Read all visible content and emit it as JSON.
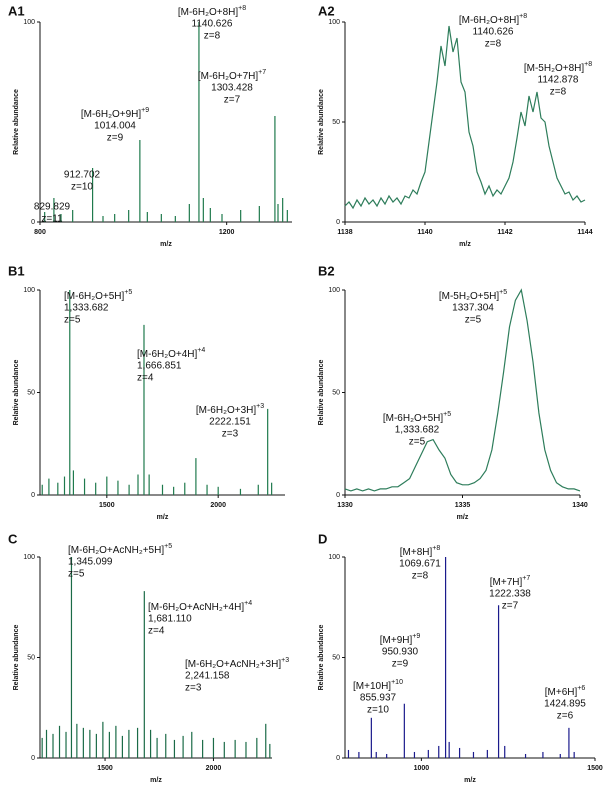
{
  "chart_data": [
    {
      "panel": "A1",
      "type": "stem",
      "xlabel": "m/z",
      "ylabel": "Relative abundance",
      "color": "#1f7a4d",
      "xlim": [
        800,
        1340
      ],
      "ylim": [
        0,
        100
      ],
      "xticks": [
        800,
        1200
      ],
      "yticks": [
        0,
        100
      ],
      "x": [
        810,
        829.8,
        845,
        870,
        912.7,
        935,
        960,
        990,
        1014.0,
        1030,
        1060,
        1090,
        1120,
        1140.6,
        1150,
        1165,
        1190,
        1230,
        1270,
        1303.4,
        1310,
        1320,
        1330
      ],
      "values": [
        5,
        12,
        4,
        6,
        27,
        3,
        4,
        6,
        41,
        5,
        4,
        3,
        9,
        100,
        12,
        7,
        4,
        6,
        8,
        53,
        9,
        12,
        6
      ],
      "annotations": [
        {
          "ion": "[M-6H₂O+8H]",
          "charge": "+8",
          "mz": "1140.626",
          "z": "z=8"
        },
        {
          "ion": "[M-6H₂O+7H]",
          "charge": "+7",
          "mz": "1303.428",
          "z": "z=7"
        },
        {
          "ion": "[M-6H₂O+9H]",
          "charge": "+9",
          "mz": "1014.004",
          "z": "z=9"
        },
        {
          "mz": "912.702",
          "z": "z=10"
        },
        {
          "mz": "829.829",
          "z": "z=11"
        }
      ]
    },
    {
      "panel": "A2",
      "type": "line",
      "xlabel": "m/z",
      "ylabel": "Relative abundance",
      "color": "#2e7d5b",
      "xlim": [
        1138,
        1144
      ],
      "ylim": [
        0,
        100
      ],
      "xticks": [
        1138,
        1140,
        1142,
        1144
      ],
      "yticks": [
        0,
        50,
        100
      ],
      "x": [
        1138.0,
        1138.1,
        1138.2,
        1138.3,
        1138.4,
        1138.5,
        1138.6,
        1138.7,
        1138.8,
        1138.9,
        1139.0,
        1139.1,
        1139.2,
        1139.3,
        1139.4,
        1139.5,
        1139.6,
        1139.7,
        1139.8,
        1139.9,
        1140.0,
        1140.1,
        1140.2,
        1140.3,
        1140.4,
        1140.5,
        1140.6,
        1140.7,
        1140.8,
        1140.9,
        1141.0,
        1141.1,
        1141.2,
        1141.3,
        1141.4,
        1141.5,
        1141.6,
        1141.7,
        1141.8,
        1141.9,
        1142.0,
        1142.1,
        1142.2,
        1142.3,
        1142.4,
        1142.5,
        1142.6,
        1142.7,
        1142.8,
        1142.9,
        1143.0,
        1143.1,
        1143.2,
        1143.3,
        1143.4,
        1143.5,
        1143.6,
        1143.7,
        1143.8,
        1143.9,
        1144.0
      ],
      "values": [
        8,
        10,
        7,
        11,
        8,
        12,
        9,
        11,
        8,
        12,
        9,
        13,
        10,
        12,
        9,
        13,
        12,
        16,
        14,
        20,
        25,
        40,
        55,
        70,
        88,
        78,
        98,
        85,
        92,
        70,
        65,
        45,
        38,
        25,
        20,
        14,
        18,
        13,
        16,
        14,
        18,
        22,
        30,
        42,
        55,
        48,
        63,
        55,
        65,
        52,
        50,
        38,
        30,
        22,
        18,
        14,
        15,
        11,
        13,
        10,
        11
      ],
      "annotations": [
        {
          "ion": "[M-6H₂O+8H]",
          "charge": "+8",
          "mz": "1140.626",
          "z": "z=8"
        },
        {
          "ion": "[M-5H₂O+8H]",
          "charge": "+8",
          "mz": "1142.878",
          "z": "z=8"
        }
      ]
    },
    {
      "panel": "B1",
      "type": "stem",
      "xlabel": "m/z",
      "ylabel": "Relative abundance",
      "color": "#1f7a4d",
      "xlim": [
        1200,
        2300
      ],
      "ylim": [
        0,
        100
      ],
      "xticks": [
        1500,
        2000
      ],
      "yticks": [
        0,
        50,
        100
      ],
      "x": [
        1210,
        1240,
        1280,
        1310,
        1333.7,
        1350,
        1400,
        1450,
        1500,
        1550,
        1600,
        1640,
        1666.9,
        1690,
        1750,
        1800,
        1850,
        1900,
        1950,
        2000,
        2100,
        2180,
        2222.2,
        2240
      ],
      "values": [
        5,
        8,
        6,
        9,
        100,
        12,
        8,
        6,
        9,
        7,
        5,
        10,
        83,
        10,
        5,
        4,
        6,
        18,
        5,
        4,
        3,
        5,
        42,
        6
      ],
      "annotations": [
        {
          "ion": "[M-6H₂O+5H]",
          "charge": "+5",
          "mz": "1,333.682",
          "z": "z=5"
        },
        {
          "ion": "[M-6H₂O+4H]",
          "charge": "+4",
          "mz": "1,666.851",
          "z": "z=4"
        },
        {
          "ion": "[M-6H₂O+3H]",
          "charge": "+3",
          "mz": "2222.151",
          "z": "z=3"
        }
      ]
    },
    {
      "panel": "B2",
      "type": "line",
      "xlabel": "m/z",
      "ylabel": "Relative abundance",
      "color": "#2e7d5b",
      "xlim": [
        1330,
        1340
      ],
      "ylim": [
        0,
        100
      ],
      "xticks": [
        1330,
        1335,
        1340
      ],
      "yticks": [
        0,
        50,
        100
      ],
      "x": [
        1330,
        1330.25,
        1330.5,
        1330.75,
        1331,
        1331.25,
        1331.5,
        1331.75,
        1332,
        1332.25,
        1332.5,
        1332.75,
        1333,
        1333.25,
        1333.5,
        1333.75,
        1334,
        1334.25,
        1334.5,
        1334.75,
        1335,
        1335.25,
        1335.5,
        1335.75,
        1336,
        1336.25,
        1336.5,
        1336.75,
        1337,
        1337.25,
        1337.5,
        1337.75,
        1338,
        1338.25,
        1338.5,
        1338.75,
        1339,
        1339.25,
        1339.5,
        1339.75,
        1340
      ],
      "values": [
        3,
        2,
        3,
        2,
        3,
        2,
        3,
        3,
        4,
        4,
        6,
        8,
        14,
        20,
        26,
        27,
        22,
        18,
        10,
        6,
        5,
        5,
        6,
        8,
        12,
        22,
        40,
        60,
        82,
        95,
        100,
        85,
        65,
        40,
        22,
        12,
        6,
        4,
        3,
        3,
        2
      ],
      "annotations": [
        {
          "ion": "[M-5H₂O+5H]",
          "charge": "+5",
          "mz": "1337.304",
          "z": "z=5"
        },
        {
          "ion": "[M-6H₂O+5H]",
          "charge": "+5",
          "mz": "1,333.682",
          "z": "z=5"
        }
      ]
    },
    {
      "panel": "C",
      "type": "stem",
      "xlabel": "m/z",
      "ylabel": "Relative abundance",
      "color": "#1b6b47",
      "xlim": [
        1200,
        2270
      ],
      "ylim": [
        0,
        100
      ],
      "xticks": [
        1500,
        2000
      ],
      "yticks": [
        0,
        50,
        100
      ],
      "x": [
        1210,
        1230,
        1260,
        1290,
        1320,
        1345.1,
        1370,
        1400,
        1430,
        1460,
        1490,
        1520,
        1550,
        1580,
        1610,
        1650,
        1681.1,
        1710,
        1740,
        1780,
        1820,
        1860,
        1900,
        1950,
        2000,
        2050,
        2100,
        2150,
        2200,
        2241.2,
        2260
      ],
      "values": [
        10,
        14,
        12,
        16,
        13,
        100,
        17,
        15,
        14,
        12,
        18,
        13,
        16,
        11,
        14,
        15,
        83,
        14,
        10,
        12,
        9,
        11,
        13,
        9,
        10,
        8,
        9,
        8,
        10,
        17,
        7
      ],
      "annotations": [
        {
          "ion": "[M-6H₂O+AcNH₂+5H]",
          "charge": "+5",
          "mz": "1,345.099",
          "z": "z=5"
        },
        {
          "ion": "[M-6H₂O+AcNH₂+4H]",
          "charge": "+4",
          "mz": "1,681.110",
          "z": "z=4"
        },
        {
          "ion": "[M-6H₂O+AcNH₂+3H]",
          "charge": "+3",
          "mz": "2,241.158",
          "z": "z=3"
        }
      ]
    },
    {
      "panel": "D",
      "type": "stem",
      "xlabel": "m/z",
      "ylabel": "Relative abundance",
      "color": "#1a1a8c",
      "xlim": [
        780,
        1500
      ],
      "ylim": [
        0,
        100
      ],
      "xticks": [
        1000,
        1500
      ],
      "yticks": [
        0,
        50,
        100
      ],
      "x": [
        790,
        820,
        855.9,
        870,
        900,
        950.9,
        980,
        1020,
        1050,
        1069.7,
        1080,
        1110,
        1150,
        1190,
        1222.3,
        1240,
        1300,
        1350,
        1400,
        1424.9,
        1440
      ],
      "values": [
        4,
        3,
        20,
        3,
        2,
        27,
        3,
        4,
        6,
        100,
        8,
        5,
        3,
        4,
        76,
        6,
        2,
        3,
        2,
        15,
        3
      ],
      "annotations": [
        {
          "ion": "[M+8H]",
          "charge": "+8",
          "mz": "1069.671",
          "z": "z=8"
        },
        {
          "ion": "[M+7H]",
          "charge": "+7",
          "mz": "1222.338",
          "z": "z=7"
        },
        {
          "ion": "[M+9H]",
          "charge": "+9",
          "mz": "950.930",
          "z": "z=9"
        },
        {
          "ion": "[M+10H]",
          "charge": "+10",
          "mz": "855.937",
          "z": "z=10"
        },
        {
          "ion": "[M+6H]",
          "charge": "+6",
          "mz": "1424.895",
          "z": "z=6"
        }
      ]
    }
  ]
}
